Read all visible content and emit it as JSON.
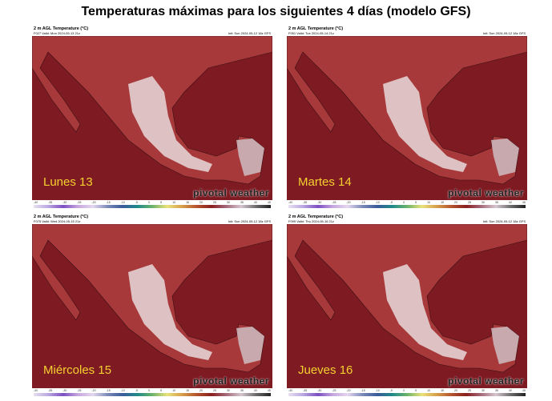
{
  "title": "Temperaturas máximas para los siguientes 4 días (modelo GFS)",
  "colors": {
    "warm_background": "#7e1a22",
    "land_hot": "#a8393a",
    "highlands_cool": "#e6d9dc",
    "day_label": "#f5d130"
  },
  "colorbar_ticks": [
    "-40",
    "-35",
    "-30",
    "-25",
    "-20",
    "-15",
    "-10",
    "-5",
    "0",
    "5",
    "10",
    "15",
    "20",
    "25",
    "30",
    "35",
    "40",
    "45"
  ],
  "panels": [
    {
      "header": "2 m AGL Temperature (°C)",
      "valid": "F027 Valid: Mon 2024-05-13 21z",
      "init": "Init: Sun 2024-05-12 18z GFS",
      "day": "Lunes 13",
      "brand": "pivotal weather"
    },
    {
      "header": "2 m AGL Temperature (°C)",
      "valid": "F051 Valid: Tue 2024-05-14 21z",
      "init": "Init: Sun 2024-05-12 18z GFS",
      "day": "Martes 14",
      "brand": "pivotal weather"
    },
    {
      "header": "2 m AGL Temperature (°C)",
      "valid": "F075 Valid: Wed 2024-05-15 21z",
      "init": "Init: Sun 2024-05-12 18z GFS",
      "day": "Miércoles 15",
      "brand": "pivotal weather"
    },
    {
      "header": "2 m AGL Temperature (°C)",
      "valid": "F099 Valid: Thu 2024-05-16 21z",
      "init": "Init: Sun 2024-05-12 18z GFS",
      "day": "Jueves 16",
      "brand": "pivotal weather"
    }
  ]
}
